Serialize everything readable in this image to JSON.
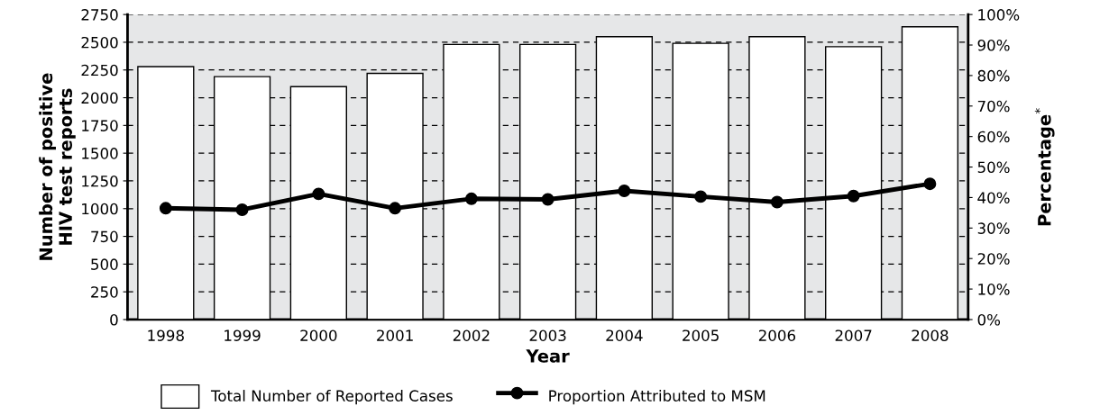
{
  "chart_data": {
    "type": "bar",
    "xlabel": "Year",
    "ylabel": "Number of positive\nHIV test reports",
    "y2label": "Percentage$^{*}$",
    "categories": [
      "1998",
      "1999",
      "2000",
      "2001",
      "2002",
      "2003",
      "2004",
      "2005",
      "2006",
      "2007",
      "2008"
    ],
    "series": [
      {
        "name": "Total Number of Reported Cases",
        "color": "#ffffff",
        "values": [
          2280,
          2190,
          2100,
          2220,
          2480,
          2480,
          2550,
          2490,
          2550,
          2460,
          2640
        ]
      },
      {
        "name": "Proportion Attributed to MSM",
        "type": "line",
        "axis": "y2",
        "color": "#000000",
        "marker": "circle",
        "values": [
          36.5,
          36.0,
          41.2,
          36.5,
          39.6,
          39.4,
          42.2,
          40.3,
          38.5,
          40.5,
          44.5
        ]
      }
    ],
    "ylim": [
      0,
      2750
    ],
    "yticks": [
      0,
      250,
      500,
      750,
      1000,
      1250,
      1500,
      1750,
      2000,
      2250,
      2500,
      2750
    ],
    "y2lim": [
      0,
      100
    ],
    "y2ticks": [
      {
        "value": 0,
        "label": "0%"
      },
      {
        "value": 10,
        "label": "10%"
      },
      {
        "value": 20,
        "label": "20%"
      },
      {
        "value": 30,
        "label": "30%"
      },
      {
        "value": 40,
        "label": "40%"
      },
      {
        "value": 50,
        "label": "50%"
      },
      {
        "value": 60,
        "label": "60%"
      },
      {
        "value": 70,
        "label": "70%"
      },
      {
        "value": 80,
        "label": "80%"
      },
      {
        "value": 90,
        "label": "90%"
      },
      {
        "value": 100,
        "label": "100%"
      }
    ],
    "grid": "y",
    "legend": "bottom"
  }
}
